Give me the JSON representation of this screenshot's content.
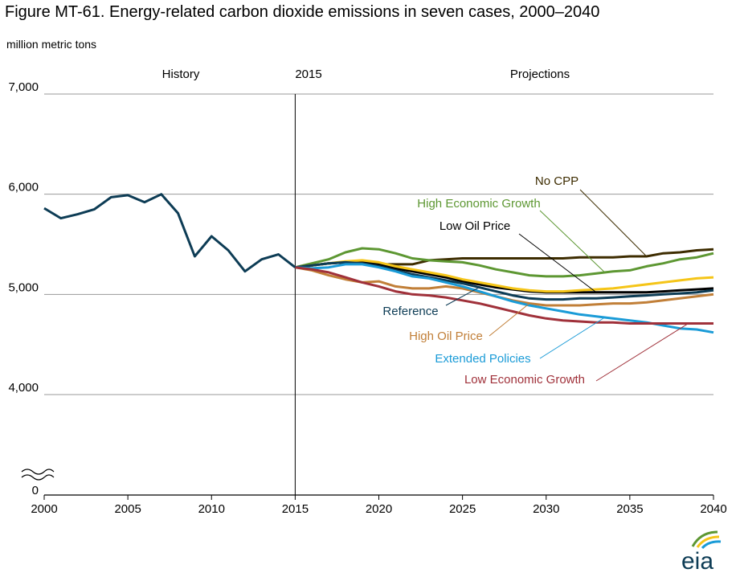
{
  "title": "Figure MT-61. Energy-related carbon dioxide emissions in seven cases, 2000–2040",
  "subtitle": "million metric tons",
  "chart_data": {
    "type": "line",
    "ylim": [
      4000,
      7000
    ],
    "xlim": [
      2000,
      2040
    ],
    "y_ticks": [
      {
        "value": 7000,
        "label": "7,000"
      },
      {
        "value": 6000,
        "label": "6,000"
      },
      {
        "value": 5000,
        "label": "5,000"
      },
      {
        "value": 4000,
        "label": "4,000"
      }
    ],
    "y_zero_label": "0",
    "x_ticks": [
      "2000",
      "2005",
      "2010",
      "2015",
      "2020",
      "2025",
      "2030",
      "2035",
      "2040"
    ],
    "region_labels": {
      "history": "History",
      "divider": "2015",
      "projections": "Projections"
    },
    "divider_year": 2015,
    "grid": true,
    "history": {
      "color": "#0d3c55",
      "x": [
        2000,
        2001,
        2002,
        2003,
        2004,
        2005,
        2006,
        2007,
        2008,
        2009,
        2010,
        2011,
        2012,
        2013,
        2014,
        2015
      ],
      "y": [
        5860,
        5760,
        5800,
        5850,
        5970,
        5990,
        5920,
        6000,
        5810,
        5380,
        5580,
        5440,
        5230,
        5350,
        5400,
        5270
      ]
    },
    "series": [
      {
        "name": "No CPP",
        "color": "#3d2c00",
        "x": [
          2015,
          2016,
          2017,
          2018,
          2019,
          2020,
          2021,
          2022,
          2023,
          2024,
          2025,
          2026,
          2027,
          2028,
          2029,
          2030,
          2031,
          2032,
          2033,
          2034,
          2035,
          2036,
          2037,
          2038,
          2039,
          2040
        ],
        "y": [
          5270,
          5290,
          5310,
          5320,
          5310,
          5300,
          5300,
          5300,
          5340,
          5350,
          5360,
          5360,
          5360,
          5360,
          5360,
          5360,
          5360,
          5370,
          5370,
          5370,
          5380,
          5380,
          5410,
          5420,
          5440,
          5450
        ]
      },
      {
        "name": "High Economic Growth",
        "color": "#5d9732",
        "x": [
          2015,
          2016,
          2017,
          2018,
          2019,
          2020,
          2021,
          2022,
          2023,
          2024,
          2025,
          2026,
          2027,
          2028,
          2029,
          2030,
          2031,
          2032,
          2033,
          2034,
          2035,
          2036,
          2037,
          2038,
          2039,
          2040
        ],
        "y": [
          5270,
          5310,
          5350,
          5420,
          5460,
          5450,
          5410,
          5360,
          5340,
          5330,
          5320,
          5290,
          5250,
          5220,
          5190,
          5180,
          5180,
          5190,
          5210,
          5230,
          5240,
          5280,
          5310,
          5350,
          5370,
          5410
        ]
      },
      {
        "name": "Low Oil Price",
        "color": "#000000",
        "x": [
          2015,
          2016,
          2017,
          2018,
          2019,
          2020,
          2021,
          2022,
          2023,
          2024,
          2025,
          2026,
          2027,
          2028,
          2029,
          2030,
          2031,
          2032,
          2033,
          2034,
          2035,
          2036,
          2037,
          2038,
          2039,
          2040
        ],
        "y": [
          5270,
          5290,
          5310,
          5320,
          5320,
          5300,
          5260,
          5230,
          5200,
          5170,
          5130,
          5100,
          5070,
          5050,
          5030,
          5020,
          5020,
          5020,
          5020,
          5020,
          5020,
          5020,
          5030,
          5040,
          5050,
          5060
        ]
      },
      {
        "name": "",
        "color": "#f5c518",
        "x": [
          2015,
          2016,
          2017,
          2018,
          2019,
          2020,
          2021,
          2022,
          2023,
          2024,
          2025,
          2026,
          2027,
          2028,
          2029,
          2030,
          2031,
          2032,
          2033,
          2034,
          2035,
          2036,
          2037,
          2038,
          2039,
          2040
        ],
        "y": [
          5270,
          5290,
          5310,
          5330,
          5340,
          5320,
          5280,
          5250,
          5220,
          5190,
          5150,
          5120,
          5090,
          5060,
          5040,
          5030,
          5030,
          5040,
          5050,
          5060,
          5080,
          5100,
          5120,
          5140,
          5160,
          5170
        ]
      },
      {
        "name": "Reference",
        "color": "#0d3c55",
        "x": [
          2015,
          2016,
          2017,
          2018,
          2019,
          2020,
          2021,
          2022,
          2023,
          2024,
          2025,
          2026,
          2027,
          2028,
          2029,
          2030,
          2031,
          2032,
          2033,
          2034,
          2035,
          2036,
          2037,
          2038,
          2039,
          2040
        ],
        "y": [
          5270,
          5290,
          5310,
          5320,
          5310,
          5280,
          5240,
          5200,
          5170,
          5140,
          5110,
          5070,
          5030,
          4990,
          4960,
          4950,
          4950,
          4960,
          4960,
          4970,
          4980,
          4990,
          5000,
          5010,
          5020,
          5040
        ]
      },
      {
        "name": "High Oil Price",
        "color": "#c17f38",
        "x": [
          2015,
          2016,
          2017,
          2018,
          2019,
          2020,
          2021,
          2022,
          2023,
          2024,
          2025,
          2026,
          2027,
          2028,
          2029,
          2030,
          2031,
          2032,
          2033,
          2034,
          2035,
          2036,
          2037,
          2038,
          2039,
          2040
        ],
        "y": [
          5270,
          5240,
          5190,
          5150,
          5120,
          5130,
          5080,
          5060,
          5060,
          5080,
          5060,
          5020,
          4980,
          4940,
          4910,
          4890,
          4890,
          4890,
          4900,
          4910,
          4910,
          4920,
          4940,
          4960,
          4980,
          5000
        ]
      },
      {
        "name": "Extended Policies",
        "color": "#1a9bd7",
        "x": [
          2015,
          2016,
          2017,
          2018,
          2019,
          2020,
          2021,
          2022,
          2023,
          2024,
          2025,
          2026,
          2027,
          2028,
          2029,
          2030,
          2031,
          2032,
          2033,
          2034,
          2035,
          2036,
          2037,
          2038,
          2039,
          2040
        ],
        "y": [
          5270,
          5260,
          5270,
          5300,
          5300,
          5270,
          5230,
          5180,
          5160,
          5120,
          5080,
          5030,
          4980,
          4930,
          4890,
          4860,
          4830,
          4800,
          4780,
          4760,
          4740,
          4720,
          4690,
          4660,
          4650,
          4620
        ]
      },
      {
        "name": "Low Economic Growth",
        "color": "#a0313a",
        "x": [
          2015,
          2016,
          2017,
          2018,
          2019,
          2020,
          2021,
          2022,
          2023,
          2024,
          2025,
          2026,
          2027,
          2028,
          2029,
          2030,
          2031,
          2032,
          2033,
          2034,
          2035,
          2036,
          2037,
          2038,
          2039,
          2040
        ],
        "y": [
          5270,
          5250,
          5220,
          5170,
          5120,
          5080,
          5030,
          5000,
          4990,
          4970,
          4940,
          4910,
          4870,
          4830,
          4790,
          4760,
          4740,
          4730,
          4720,
          4720,
          4710,
          4710,
          4710,
          4710,
          4710,
          4710
        ]
      }
    ],
    "label_colors": {
      "No CPP": "#3d2c00",
      "High Economic Growth": "#5d9732",
      "Low Oil Price": "#000000",
      "Reference": "#0d3c55",
      "High Oil Price": "#c17f38",
      "Extended Policies": "#1a9bd7",
      "Low Economic Growth": "#a0313a"
    }
  },
  "logo": {
    "text": "eia",
    "colors": [
      "#5d9732",
      "#f5c518",
      "#1a9bd7"
    ]
  }
}
